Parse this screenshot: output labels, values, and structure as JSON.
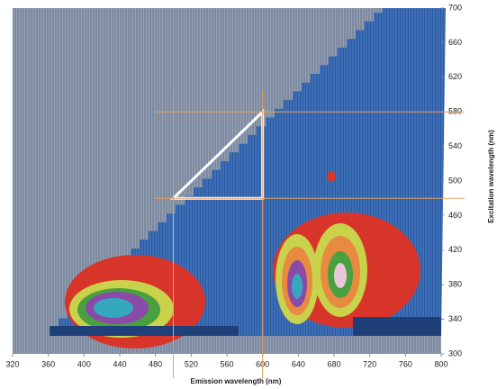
{
  "chart_data": {
    "type": "contour",
    "x_label": "Emission wavelength (nm)",
    "y_label": "Excitation wavelength (nm)",
    "xlim": [
      320,
      800
    ],
    "xticks": [
      320,
      360,
      400,
      440,
      480,
      520,
      560,
      600,
      640,
      680,
      720,
      760,
      800
    ],
    "ylim": [
      300,
      700
    ],
    "yticks": [
      300,
      340,
      380,
      420,
      460,
      500,
      540,
      580,
      620,
      660,
      700
    ],
    "guide_x": [
      500,
      600
    ],
    "guide_y": [
      480,
      580
    ],
    "guide_color": "#e8a060"
  }
}
